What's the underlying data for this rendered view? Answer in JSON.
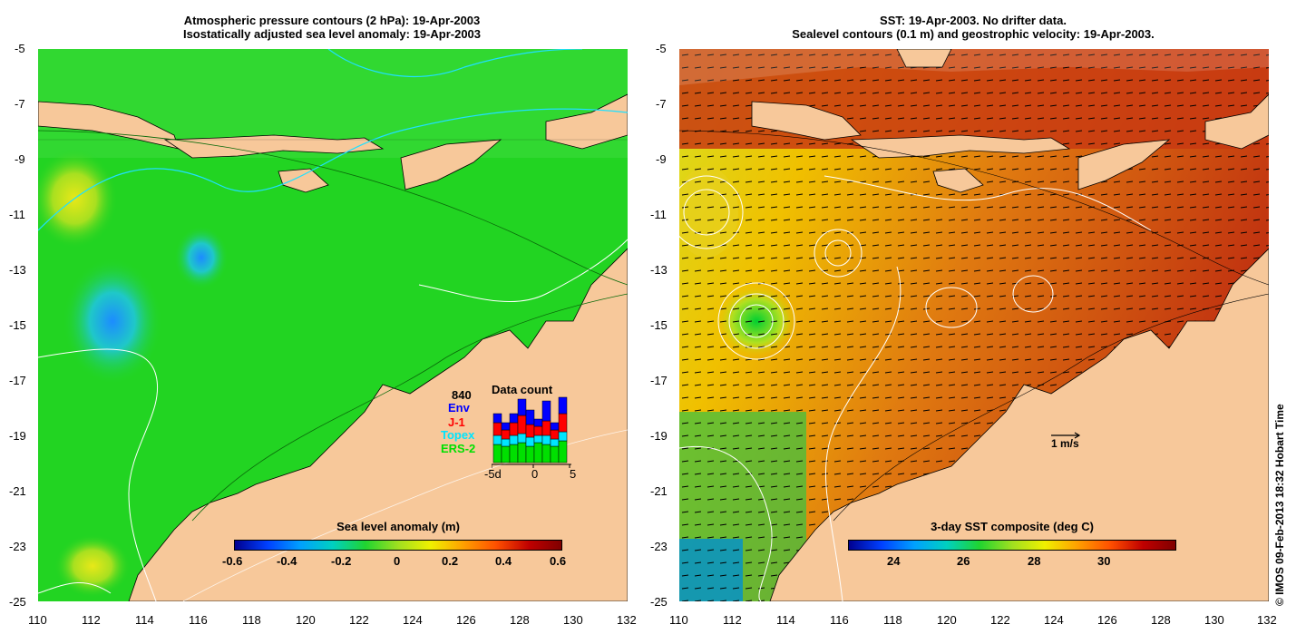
{
  "left": {
    "title_line1": "Atmospheric pressure contours (2 hPa): 19-Apr-2003",
    "title_line2": "Isostatically adjusted sea level anomaly: 19-Apr-2003",
    "colorbar_label": "Sea level anomaly (m)",
    "colorbar_ticks": [
      "-0.6",
      "-0.4",
      "-0.2",
      "0",
      "0.2",
      "0.4",
      "0.6"
    ],
    "legend": {
      "count": "840",
      "title": "Data count",
      "entries": [
        {
          "label": "Env",
          "color": "#0000ff"
        },
        {
          "label": "J-1",
          "color": "#ff0000"
        },
        {
          "label": "Topex",
          "color": "#00e5ff"
        },
        {
          "label": "ERS-2",
          "color": "#00e000"
        }
      ],
      "x_ticks": [
        "-5d",
        "0",
        "5"
      ]
    }
  },
  "right": {
    "title_line1": "SST: 19-Apr-2003. No drifter data.",
    "title_line2": "Sealevel contours (0.1 m) and geostrophic velocity: 19-Apr-2003.",
    "colorbar_label": "3-day SST composite (deg C)",
    "colorbar_ticks": [
      "24",
      "26",
      "28",
      "30"
    ],
    "scale_label": "1 m/s"
  },
  "axes": {
    "y_ticks": [
      "-5",
      "-7",
      "-9",
      "-11",
      "-13",
      "-15",
      "-17",
      "-19",
      "-21",
      "-23",
      "-25"
    ],
    "x_ticks": [
      "110",
      "112",
      "114",
      "116",
      "118",
      "120",
      "122",
      "124",
      "126",
      "128",
      "130",
      "132"
    ]
  },
  "copyright": "© IMOS 09-Feb-2013 18:32 Hobart Time",
  "colors": {
    "land": "#f7c89a",
    "ocean_left": "#21d421",
    "ocean_right": "#e07a10"
  }
}
